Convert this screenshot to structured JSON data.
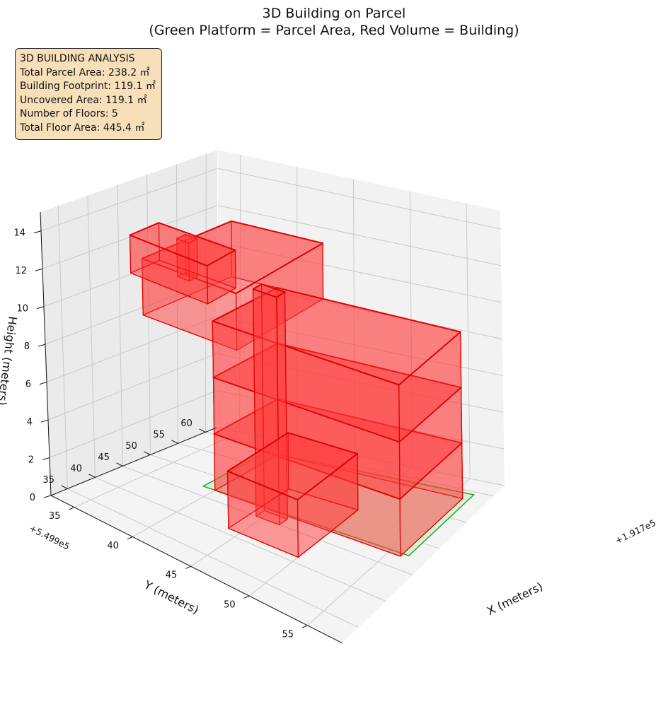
{
  "chart_data": {
    "type": "3d-box",
    "title": "3D Building on Parcel",
    "subtitle": "(Green Platform = Parcel Area, Red Volume = Building)",
    "xlabel": "X (meters)",
    "ylabel": "Y (meters)",
    "zlabel": "Height (meters)",
    "x_offset": "+1.917e5",
    "y_offset": "+5.499e5",
    "x_ticks": [
      "35",
      "40",
      "45",
      "50",
      "55"
    ],
    "y_ticks": [
      "35",
      "40",
      "45",
      "50",
      "55",
      "60"
    ],
    "z_ticks": [
      "0",
      "2",
      "4",
      "6",
      "8",
      "10",
      "12",
      "14"
    ],
    "xlim": [
      33,
      58
    ],
    "ylim": [
      32,
      62
    ],
    "zlim": [
      0,
      15
    ],
    "grid": true,
    "colors": {
      "parcel": "#2ca02c",
      "parcel_fill": "#d4f2d4",
      "building": "#e00000",
      "building_fill": "#ff3b3b"
    },
    "parcel": {
      "name": "Parcel Area",
      "polygon": [
        [
          39,
          58.5
        ],
        [
          39,
          47
        ],
        [
          56.5,
          47.5
        ],
        [
          56.5,
          59.5
        ]
      ],
      "z": 0
    },
    "building_blocks": [
      {
        "x": [
          40,
          56
        ],
        "y": [
          47,
          58.5
        ],
        "z": [
          0,
          3
        ]
      },
      {
        "x": [
          40,
          56
        ],
        "y": [
          47,
          58.5
        ],
        "z": [
          3,
          6
        ]
      },
      {
        "x": [
          40,
          56
        ],
        "y": [
          47,
          58.5
        ],
        "z": [
          6,
          9
        ]
      },
      {
        "x": [
          36,
          44
        ],
        "y": [
          43,
          58.5
        ],
        "z": [
          9,
          12
        ]
      },
      {
        "x": [
          37,
          43.5
        ],
        "y": [
          39,
          44
        ],
        "z": [
          12,
          14
        ]
      },
      {
        "x": [
          44,
          50
        ],
        "y": [
          41,
          52
        ],
        "z": [
          0,
          3
        ]
      },
      {
        "x": [
          44.5,
          46.5
        ],
        "y": [
          45,
          46.5
        ],
        "z": [
          0,
          12
        ]
      },
      {
        "x": [
          39.5,
          40.5
        ],
        "y": [
          42,
          43.5
        ],
        "z": [
          12,
          14
        ]
      }
    ],
    "info": {
      "heading": "3D BUILDING ANALYSIS",
      "lines": [
        "Total Parcel Area: 238.2 ㎡",
        "Building Footprint: 119.1 ㎡",
        "Uncovered Area: 119.1 ㎡",
        "Number of Floors: 5",
        "Total Floor Area: 445.4 ㎡"
      ]
    }
  }
}
